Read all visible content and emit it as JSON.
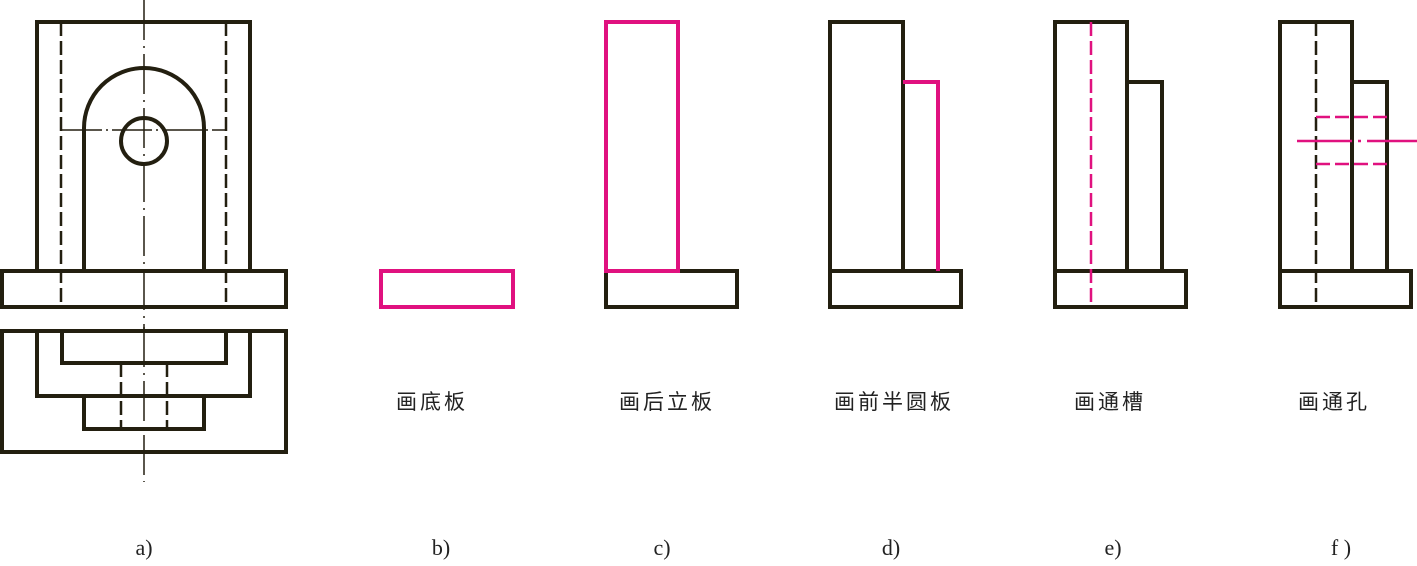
{
  "colors": {
    "line": "#231f10",
    "highlight": "#e0117f"
  },
  "panels": [
    {
      "label": "a)",
      "caption": ""
    },
    {
      "label": "b)",
      "caption": "画底板"
    },
    {
      "label": "c)",
      "caption": "画后立板"
    },
    {
      "label": "d)",
      "caption": "画前半圆板"
    },
    {
      "label": "e)",
      "caption": "画通槽"
    },
    {
      "label": "f )",
      "caption": "画通孔"
    }
  ]
}
